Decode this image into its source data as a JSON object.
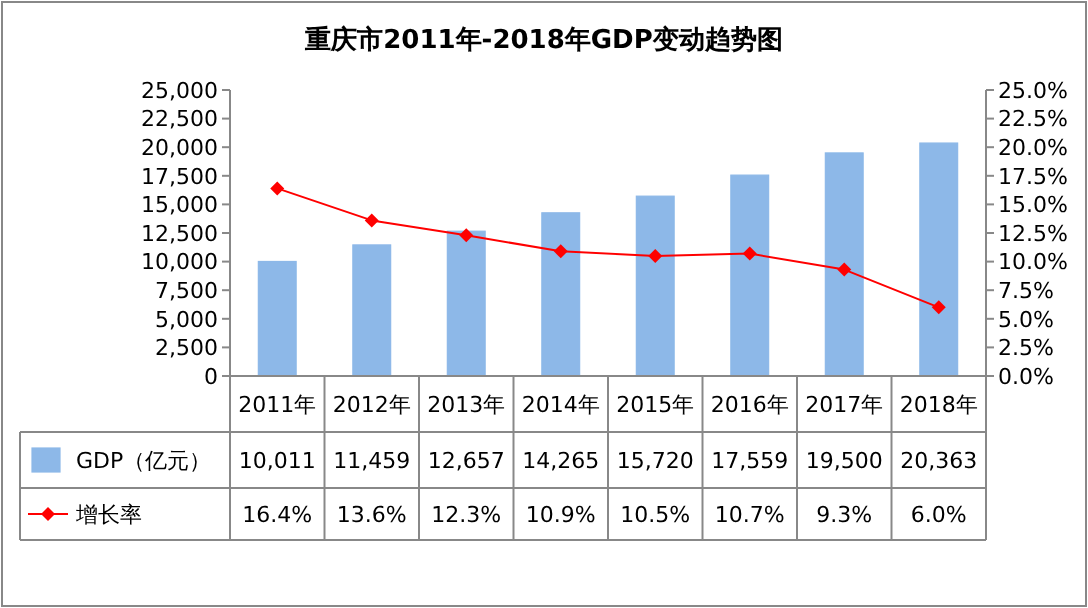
{
  "chart_data": {
    "type": "bar",
    "title": "重庆市2011年-2018年GDP变动趋势图",
    "categories": [
      "2011年",
      "2012年",
      "2013年",
      "2014年",
      "2015年",
      "2016年",
      "2017年",
      "2018年"
    ],
    "series": [
      {
        "name": "GDP（亿元）",
        "color": "#8db8e8",
        "values": [
          10011,
          11459,
          12657,
          14265,
          15720,
          17559,
          19500,
          20363
        ],
        "value_labels": [
          "10,011",
          "11,459",
          "12,657",
          "14,265",
          "15,720",
          "17,559",
          "19,500",
          "20,363"
        ]
      },
      {
        "name": "增长率",
        "type": "line",
        "axis": "y2",
        "color": "#ff0000",
        "marker": "diamond",
        "values": [
          16.4,
          13.6,
          12.3,
          10.9,
          10.5,
          10.7,
          9.3,
          6.0
        ],
        "value_labels": [
          "16.4%",
          "13.6%",
          "12.3%",
          "10.9%",
          "10.5%",
          "10.7%",
          "9.3%",
          "6.0%"
        ]
      }
    ],
    "ylim": [
      0,
      25000
    ],
    "yticks": [
      0,
      {
        "value": 2500,
        "label": "2,500"
      },
      {
        "value": 5000,
        "label": "5,000"
      },
      {
        "value": 7500,
        "label": "7,500"
      },
      {
        "value": 10000,
        "label": "10,000"
      },
      {
        "value": 12500,
        "label": "12,500"
      },
      {
        "value": 15000,
        "label": "15,000"
      },
      {
        "value": 17500,
        "label": "17,500"
      },
      {
        "value": 20000,
        "label": "20,000"
      },
      {
        "value": 22500,
        "label": "22,500"
      },
      {
        "value": 25000,
        "label": "25,000"
      }
    ],
    "y2lim": [
      0,
      25
    ],
    "y2ticks": [
      {
        "value": 0,
        "label": "0.0%"
      },
      {
        "value": 2.5,
        "label": "2.5%"
      },
      {
        "value": 5,
        "label": "5.0%"
      },
      {
        "value": 7.5,
        "label": "7.5%"
      },
      {
        "value": 10,
        "label": "10.0%"
      },
      {
        "value": 12.5,
        "label": "12.5%"
      },
      {
        "value": 15,
        "label": "15.0%"
      },
      {
        "value": 17.5,
        "label": "17.5%"
      },
      {
        "value": 20,
        "label": "20.0%"
      },
      {
        "value": 22.5,
        "label": "22.5%"
      },
      {
        "value": 25,
        "label": "25.0%"
      }
    ],
    "legend": "bottom"
  }
}
